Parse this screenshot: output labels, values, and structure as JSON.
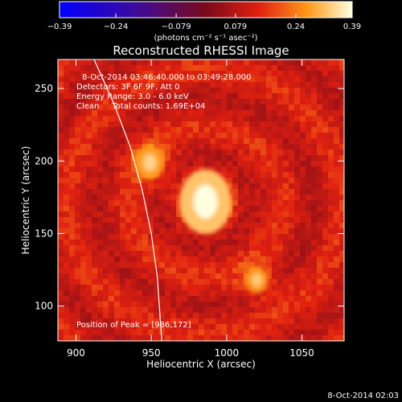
{
  "chart_data": {
    "type": "heatmap",
    "title": "Reconstructed RHESSI Image",
    "xlabel": "Heliocentric X (arcsec)",
    "ylabel": "Heliocentric Y (arcsec)",
    "xlim": [
      888,
      1078
    ],
    "ylim": [
      76,
      270
    ],
    "xticks": [
      900,
      950,
      1000,
      1050
    ],
    "yticks": [
      100,
      150,
      200,
      250
    ],
    "grid": false,
    "colorbar": {
      "ticks": [
        -0.39,
        -0.24,
        -0.079,
        0.079,
        0.24,
        0.39
      ],
      "tick_labels": [
        "−0.39",
        "−0.24",
        "−0.079",
        "0.079",
        "0.24",
        "0.39"
      ],
      "unit_label": "(photons cm⁻² s⁻¹ asec⁻²)",
      "range": [
        -0.39,
        0.39
      ]
    },
    "info_lines": [
      "8-Oct-2014 03:46:40.000 to 03:49:28.000",
      "Detectors: 3F 6F 9F, Att 0",
      "Energy Range: 3.0 - 6.0 keV",
      "Clean     Total counts: 1.69E+04"
    ],
    "peak_label": "Position of Peak = [986,172]",
    "peak": [
      986,
      172
    ],
    "sources": [
      {
        "x": 986,
        "y": 172,
        "peak": 0.39
      },
      {
        "x": 949,
        "y": 199,
        "peak": 0.17
      },
      {
        "x": 1020,
        "y": 118,
        "peak": 0.12
      }
    ],
    "limb_curve": [
      [
        912,
        270
      ],
      [
        925,
        240
      ],
      [
        936,
        210
      ],
      [
        944,
        180
      ],
      [
        950,
        150
      ],
      [
        954,
        120
      ],
      [
        956,
        90
      ],
      [
        957,
        76
      ]
    ],
    "timestamp": "8-Oct-2014 02:03"
  }
}
